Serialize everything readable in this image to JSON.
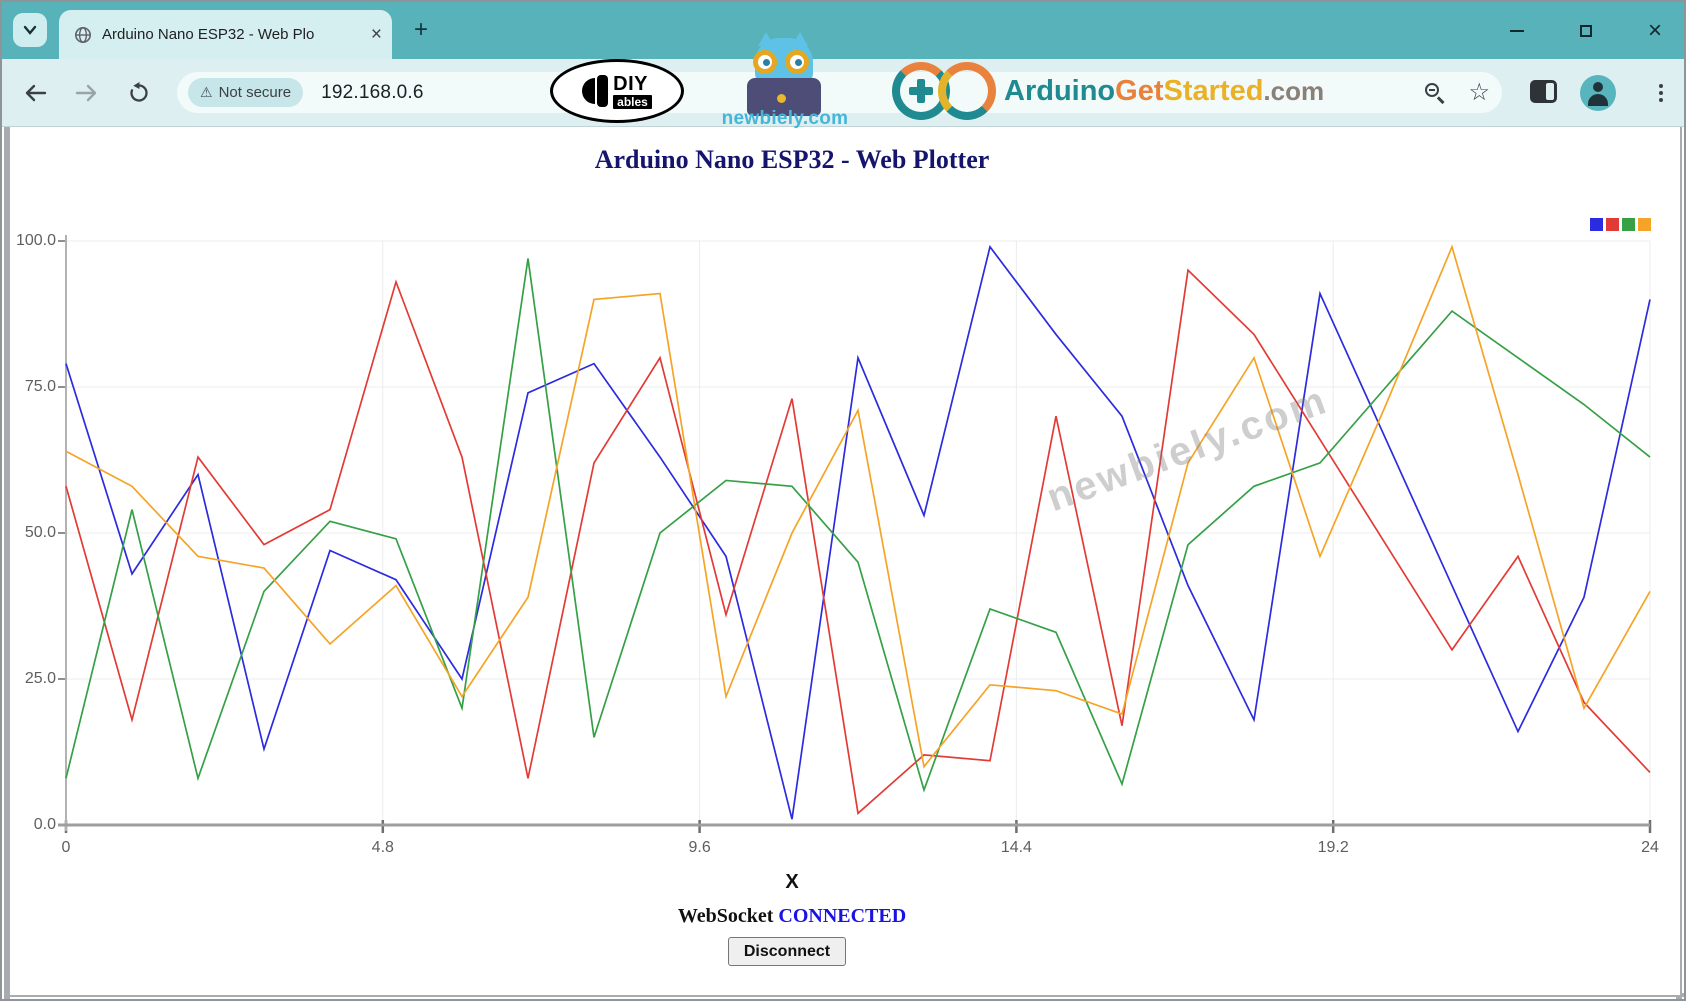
{
  "browser": {
    "tab": {
      "title": "Arduino Nano ESP32 - Web Plo",
      "close_icon": "×",
      "new_tab_icon": "+"
    },
    "window_controls": {
      "close_icon": "×"
    },
    "toolbar": {
      "security_chip": {
        "warning_icon": "⚠",
        "label": "Not secure"
      },
      "url": "192.168.0.6",
      "star_icon": "☆"
    }
  },
  "overlays": {
    "diyables": {
      "line1": "DIY",
      "line2": "ables"
    },
    "newbiely_toolbar": "newbiely.com",
    "arduino": {
      "word1": "Arduino",
      "word2": "Get",
      "word3": "Started",
      "word4": ".com"
    },
    "chart_watermark": "newbiely.com"
  },
  "page": {
    "title": "Arduino Nano ESP32 - Web Plotter",
    "xaxis_label": "X",
    "status": {
      "prefix": "WebSocket",
      "state": "CONNECTED"
    },
    "button_label": "Disconnect"
  },
  "colors": {
    "titlebar_teal": "#57b2ba",
    "page_title_navy": "#15156e",
    "connected_blue": "#1a12e0",
    "watermark_cyan": "#45b6d8"
  },
  "chart_data": {
    "type": "line",
    "title": "",
    "xlabel": "X",
    "ylabel": "",
    "xlim": [
      0,
      24
    ],
    "ylim": [
      0,
      100
    ],
    "grid": true,
    "legend_position": "top-right",
    "x_ticks": [
      "0",
      "4.8",
      "9.6",
      "14.4",
      "19.2",
      "24"
    ],
    "y_ticks": [
      "100.0",
      "75.0",
      "50.0",
      "25.0",
      "0.0"
    ],
    "x": [
      0,
      1,
      2,
      3,
      4,
      5,
      6,
      7,
      8,
      9,
      10,
      11,
      12,
      13,
      14,
      15,
      16,
      17,
      18,
      19,
      20,
      21,
      22,
      23,
      24
    ],
    "series": [
      {
        "name": "blue",
        "color": "#2b2bdf",
        "values": [
          79,
          43,
          60,
          13,
          47,
          42,
          25,
          74,
          79,
          63,
          46,
          1,
          80,
          53,
          99,
          84,
          70,
          41,
          18,
          91,
          66,
          41,
          16,
          39,
          90
        ]
      },
      {
        "name": "red",
        "color": "#e23b36",
        "values": [
          58,
          18,
          63,
          48,
          54,
          93,
          63,
          8,
          62,
          80,
          36,
          73,
          2,
          12,
          11,
          70,
          17,
          95,
          84,
          66,
          48,
          30,
          46,
          21,
          9
        ]
      },
      {
        "name": "green",
        "color": "#35a046",
        "values": [
          8,
          54,
          8,
          40,
          52,
          49,
          20,
          97,
          15,
          50,
          59,
          58,
          45,
          6,
          37,
          33,
          7,
          48,
          58,
          62,
          75,
          88,
          80,
          72,
          63
        ]
      },
      {
        "name": "orange",
        "color": "#f5a427",
        "values": [
          64,
          58,
          46,
          44,
          31,
          41,
          22,
          39,
          90,
          91,
          22,
          50,
          71,
          10,
          24,
          23,
          19,
          62,
          80,
          46,
          72,
          99,
          60,
          20,
          40
        ]
      }
    ]
  }
}
